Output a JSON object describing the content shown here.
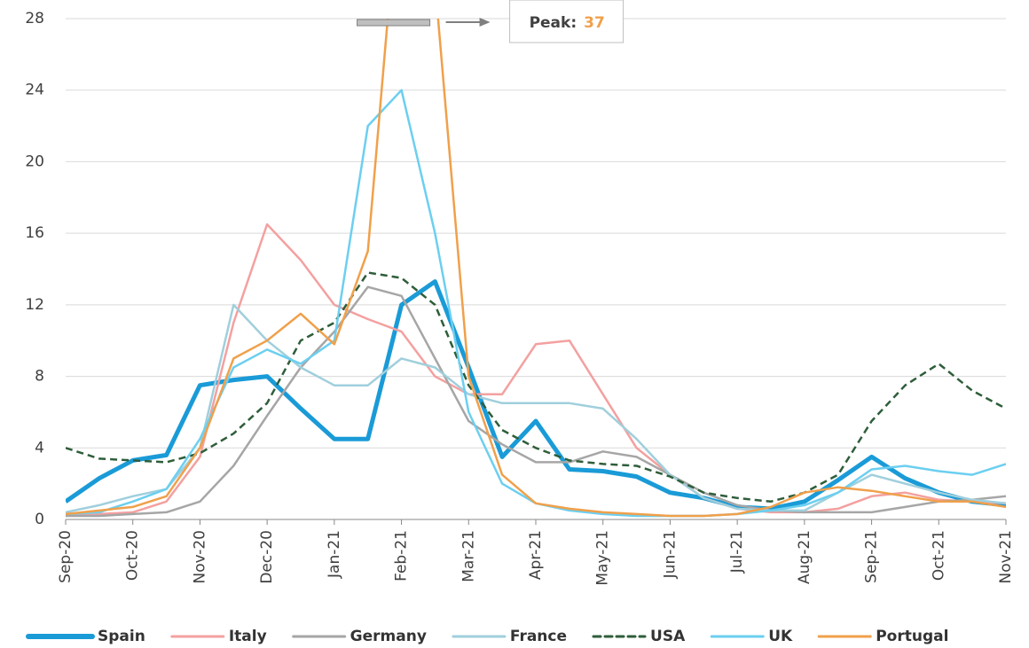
{
  "chart_data": {
    "type": "line",
    "categories": [
      "Sep-20",
      null,
      "Oct-20",
      null,
      "Nov-20",
      null,
      "Dec-20",
      null,
      "Jan-21",
      null,
      "Feb-21",
      null,
      "Mar-21",
      null,
      "Apr-21",
      null,
      "May-21",
      null,
      "Jun-21",
      null,
      "Jul-21",
      null,
      "Aug-21",
      null,
      "Sep-21",
      null,
      "Oct-21",
      null,
      "Nov-21"
    ],
    "ylim": [
      0,
      28
    ],
    "yticks": [
      0,
      4,
      8,
      12,
      16,
      20,
      24,
      28
    ],
    "grid": true,
    "legend": "bottom",
    "annotation": {
      "label": "Peak:",
      "value": 37,
      "color": "#f0a04b"
    },
    "series": [
      {
        "name": "Spain",
        "color": "#1a9bd7",
        "weight": "heavy",
        "linestyle": "solid",
        "values": [
          1.0,
          2.3,
          3.3,
          3.6,
          7.5,
          7.8,
          8.0,
          6.2,
          4.5,
          4.5,
          12,
          13.3,
          8.5,
          3.5,
          5.5,
          2.8,
          2.7,
          2.4,
          1.5,
          1.2,
          0.7,
          0.6,
          1.0,
          2.2,
          3.5,
          2.3,
          1.5,
          1.0,
          0.8
        ]
      },
      {
        "name": "Italy",
        "color": "#f4a0a0",
        "weight": "normal",
        "linestyle": "solid",
        "values": [
          0.3,
          0.3,
          0.4,
          1.0,
          3.5,
          11,
          16.5,
          14.5,
          12,
          11.2,
          10.5,
          8,
          7,
          7,
          9.8,
          10,
          7,
          4.0,
          2.5,
          1.2,
          0.6,
          0.4,
          0.4,
          0.6,
          1.3,
          1.5,
          1.1,
          1.0,
          0.9
        ]
      },
      {
        "name": "Germany",
        "color": "#a6a6a6",
        "weight": "normal",
        "linestyle": "solid",
        "values": [
          0.2,
          0.2,
          0.3,
          0.4,
          1.0,
          3,
          5.8,
          8.5,
          10.5,
          13,
          12.5,
          9,
          5.5,
          4.2,
          3.2,
          3.2,
          3.8,
          3.5,
          2.5,
          1.5,
          0.8,
          0.5,
          0.4,
          0.4,
          0.4,
          0.7,
          1.0,
          1.1,
          1.3
        ]
      },
      {
        "name": "France",
        "color": "#a0cfdc",
        "weight": "normal",
        "linestyle": "solid",
        "values": [
          0.4,
          0.8,
          1.3,
          1.7,
          4,
          12,
          10,
          8.5,
          7.5,
          7.5,
          9,
          8.5,
          7,
          6.5,
          6.5,
          6.5,
          6.2,
          4.5,
          2.5,
          1.2,
          0.6,
          0.5,
          0.5,
          1.5,
          2.5,
          2.0,
          1.5,
          1.1,
          0.9
        ]
      },
      {
        "name": "USA",
        "color": "#2e5e3a",
        "weight": "normal",
        "linestyle": "dashed",
        "values": [
          4.0,
          3.4,
          3.3,
          3.2,
          3.7,
          4.8,
          6.5,
          10,
          11,
          13.8,
          13.5,
          12,
          7.5,
          5,
          4,
          3.3,
          3.1,
          3.0,
          2.4,
          1.5,
          1.2,
          1.0,
          1.5,
          2.5,
          5.5,
          7.5,
          8.7,
          7.2,
          6.2
        ]
      },
      {
        "name": "UK",
        "color": "#6ccff0",
        "weight": "normal",
        "linestyle": "solid",
        "values": [
          0.3,
          0.4,
          1.0,
          1.7,
          4.5,
          8.5,
          9.5,
          8.7,
          10,
          22,
          24,
          16,
          6,
          2,
          0.9,
          0.5,
          0.3,
          0.2,
          0.2,
          0.2,
          0.3,
          0.5,
          0.8,
          1.5,
          2.8,
          3.0,
          2.7,
          2.5,
          3.1
        ]
      },
      {
        "name": "Portugal",
        "color": "#f0a04b",
        "weight": "normal",
        "linestyle": "solid",
        "values": [
          0.3,
          0.5,
          0.7,
          1.3,
          4.0,
          9.0,
          10,
          11.5,
          9.8,
          15,
          37,
          30,
          8,
          2.5,
          0.9,
          0.6,
          0.4,
          0.3,
          0.2,
          0.2,
          0.3,
          0.7,
          1.5,
          1.8,
          1.6,
          1.3,
          1.0,
          1.0,
          0.7
        ]
      }
    ]
  }
}
